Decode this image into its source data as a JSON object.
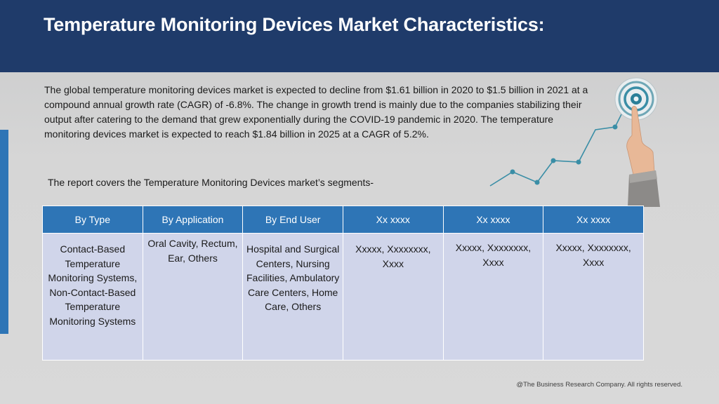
{
  "slide": {
    "title": "Temperature Monitoring Devices Market Characteristics:",
    "intro": "The global temperature monitoring devices market is expected to decline from $1.61 billion in 2020 to $1.5 billion in 2021 at a compound annual growth rate (CAGR) of -6.8%. The change in growth trend is mainly due to the companies stabilizing their output after catering to the demand that grew exponentially during the COVID-19 pandemic in 2020. The temperature monitoring devices market is expected to reach $1.84 billion in 2025 at a CAGR of 5.2%.",
    "segments_intro": "The report covers the Temperature Monitoring Devices market’s segments-",
    "footer": "@The Business Research Company. All rights reserved."
  },
  "table": {
    "headers": [
      "By Type",
      "By Application",
      "By End User",
      "Xx xxxx",
      "Xx xxxx",
      "Xx xxxx"
    ],
    "cells": [
      "Contact-Based Temperature Monitoring Systems, Non-Contact-Based Temperature Monitoring Systems",
      "Oral Cavity, Rectum, Ear, Others",
      "Hospital and Surgical Centers, Nursing Facilities, Ambulatory Care Centers, Home Care, Others",
      "Xxxxx, Xxxxxxxx, Xxxx",
      "Xxxxx, Xxxxxxxx, Xxxx",
      "Xxxxx, Xxxxxxxx, Xxxx"
    ]
  },
  "colors": {
    "header_band": "#1f3b6a",
    "accent": "#2e75b6",
    "table_body": "#d0d5ea",
    "graphic_line": "#3a8ea6"
  }
}
